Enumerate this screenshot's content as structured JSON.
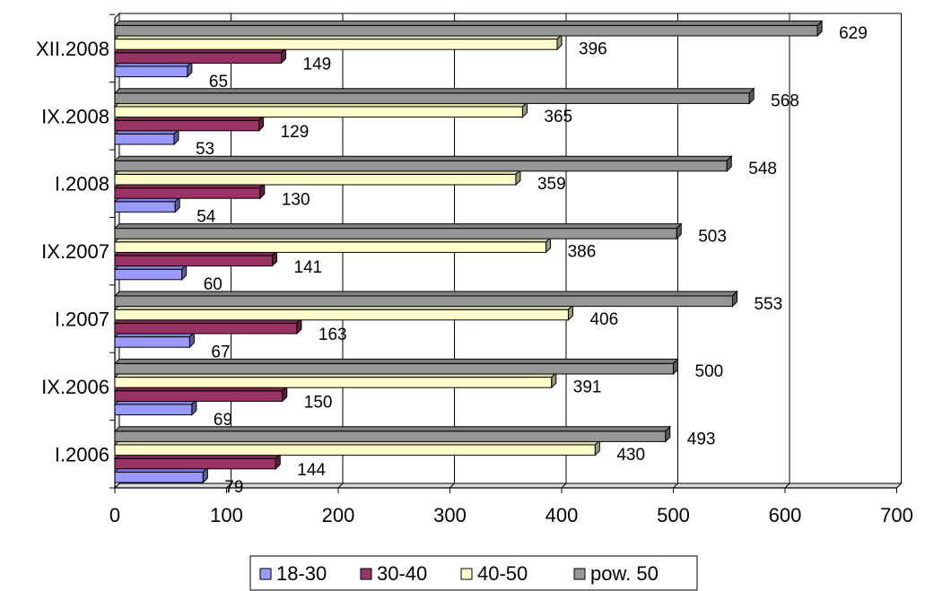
{
  "chart_data": {
    "type": "bar",
    "orientation": "horizontal",
    "categories": [
      "I.2006",
      "IX.2006",
      "I.2007",
      "IX.2007",
      "I.2008",
      "IX.2008",
      "XII.2008"
    ],
    "series": [
      {
        "name": "18-30",
        "color": "#9999FF",
        "values": [
          79,
          69,
          67,
          60,
          54,
          53,
          65
        ]
      },
      {
        "name": "30-40",
        "color": "#993366",
        "values": [
          144,
          150,
          163,
          141,
          130,
          129,
          149
        ]
      },
      {
        "name": "40-50",
        "color": "#FFFFCC",
        "values": [
          430,
          391,
          406,
          386,
          359,
          365,
          396
        ]
      },
      {
        "name": "pow. 50",
        "color": "#969696",
        "values": [
          493,
          500,
          553,
          503,
          548,
          568,
          629
        ]
      }
    ],
    "xlim": [
      0,
      700
    ],
    "xticks": [
      "0",
      "100",
      "200",
      "300",
      "400",
      "500",
      "600",
      "700"
    ],
    "grid": true,
    "legend_position": "bottom",
    "title": "",
    "xlabel": "",
    "ylabel": ""
  }
}
